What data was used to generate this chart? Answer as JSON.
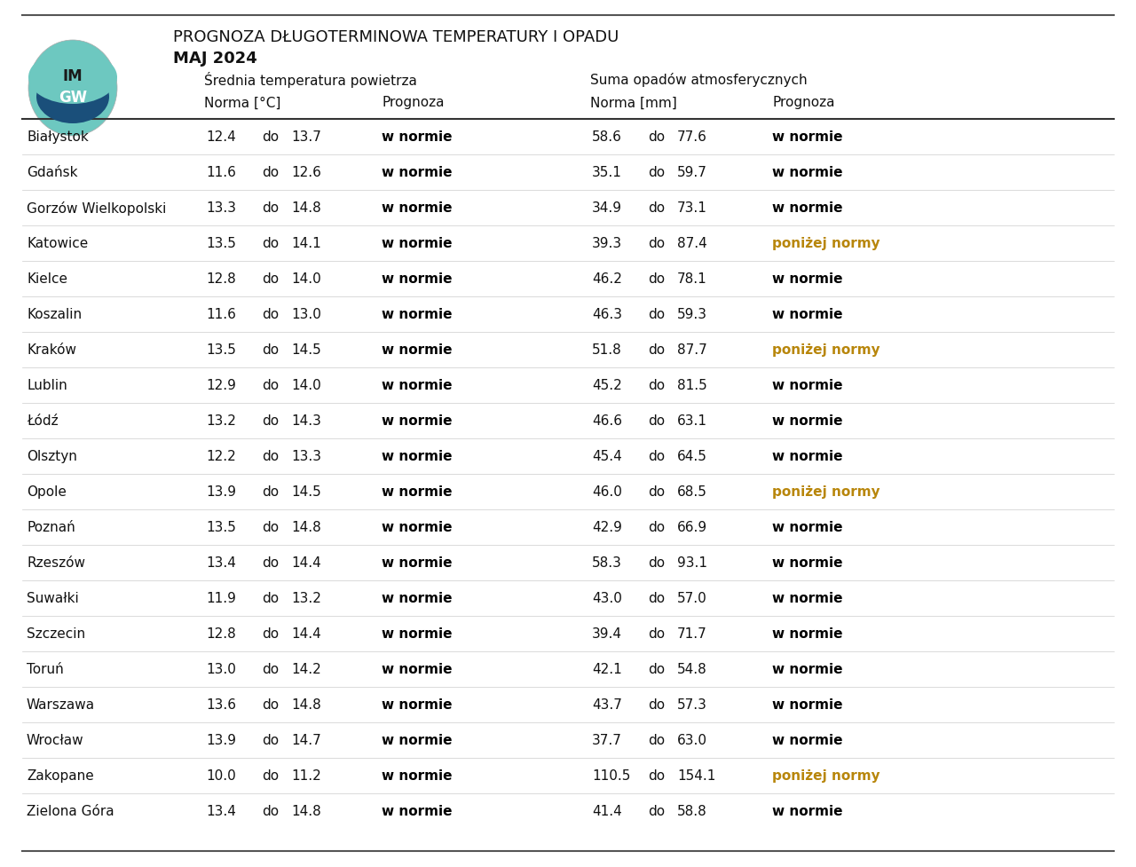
{
  "title_line1": "PROGNOZA DŁUGOTERMINOWA TEMPERATURY I OPADU",
  "title_line2": "MAJ 2024",
  "subtitle_temp": "Średnia temperatura powietrza",
  "subtitle_precip": "Suma opadów atmosferycznych",
  "col_header_norma_temp": "Norma [°C]",
  "col_header_prognoza": "Prognoza",
  "col_header_norma_mm": "Norma [mm]",
  "col_header_prognoza2": "Prognoza",
  "cities": [
    "Białystok",
    "Gdańsk",
    "Gorzów Wielkopolski",
    "Katowice",
    "Kielce",
    "Koszalin",
    "Kraków",
    "Lublin",
    "Łódź",
    "Olsztyn",
    "Opole",
    "Poznań",
    "Rzeszów",
    "Suwałki",
    "Szczecin",
    "Toruń",
    "Warszawa",
    "Wrocław",
    "Zakopane",
    "Zielona Góra"
  ],
  "temp_norma_low": [
    12.4,
    11.6,
    13.3,
    13.5,
    12.8,
    11.6,
    13.5,
    12.9,
    13.2,
    12.2,
    13.9,
    13.5,
    13.4,
    11.9,
    12.8,
    13.0,
    13.6,
    13.9,
    10.0,
    13.4
  ],
  "temp_norma_high": [
    13.7,
    12.6,
    14.8,
    14.1,
    14.0,
    13.0,
    14.5,
    14.0,
    14.3,
    13.3,
    14.5,
    14.8,
    14.4,
    13.2,
    14.4,
    14.2,
    14.8,
    14.7,
    11.2,
    14.8
  ],
  "temp_prognoza": [
    "w normie",
    "w normie",
    "w normie",
    "w normie",
    "w normie",
    "w normie",
    "w normie",
    "w normie",
    "w normie",
    "w normie",
    "w normie",
    "w normie",
    "w normie",
    "w normie",
    "w normie",
    "w normie",
    "w normie",
    "w normie",
    "w normie",
    "w normie"
  ],
  "precip_norma_low": [
    58.6,
    35.1,
    34.9,
    39.3,
    46.2,
    46.3,
    51.8,
    45.2,
    46.6,
    45.4,
    46.0,
    42.9,
    58.3,
    43.0,
    39.4,
    42.1,
    43.7,
    37.7,
    110.5,
    41.4
  ],
  "precip_norma_high": [
    77.6,
    59.7,
    73.1,
    87.4,
    78.1,
    59.3,
    87.7,
    81.5,
    63.1,
    64.5,
    68.5,
    66.9,
    93.1,
    57.0,
    71.7,
    54.8,
    57.3,
    63.0,
    154.1,
    58.8
  ],
  "precip_prognoza": [
    "w normie",
    "w normie",
    "w normie",
    "poniżej normy",
    "w normie",
    "w normie",
    "poniżej normy",
    "w normie",
    "w normie",
    "w normie",
    "poniżej normy",
    "w normie",
    "w normie",
    "w normie",
    "w normie",
    "w normie",
    "w normie",
    "w normie",
    "poniżej normy",
    "w normie"
  ],
  "normal_color": "#000000",
  "below_normal_color": "#b8860b",
  "background_color": "#ffffff"
}
